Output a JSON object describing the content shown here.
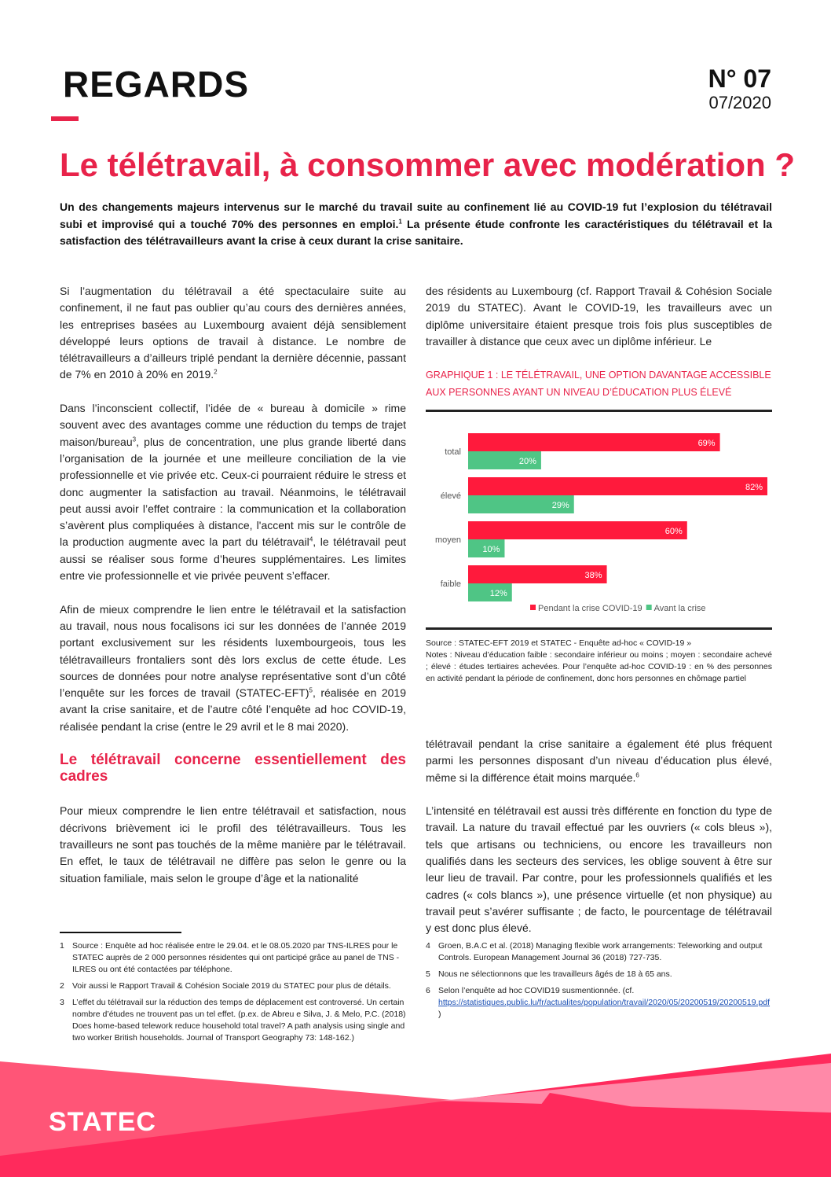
{
  "header": {
    "brand": "REGARDS",
    "issue_number": "N° 07",
    "issue_date": "07/2020"
  },
  "title": "Le télétravail, à consommer avec modération ?",
  "lead": [
    [
      "Un des changements majeurs intervenus sur le marché du travail suite au confinement lié au COVID-19 fut l’explosion du télétravail subi et improvisé qui a touché 70% des personnes en emploi.",
      {
        "sup": "1"
      },
      " La présente étude confronte les caractéristiques du télétravail  et la satisfaction des télétravailleurs avant la crise  à ceux durant la crise sanitaire."
    ]
  ],
  "left_column": {
    "paragraphs": [
      [
        "Si l’augmentation du télétravail a été spectaculaire suite au confinement, il ne faut pas oublier qu’au cours des dernières années, les entreprises basées au Luxembourg avaient déjà sensiblement développé leurs options de travail à distance. Le nombre de télétravailleurs a d’ailleurs triplé pendant la dernière décennie, passant de 7% en 2010 à 20% en 2019.",
        {
          "sup": "2"
        }
      ],
      [
        "Dans l’inconscient collectif, l’idée de « bureau à domicile » rime souvent avec des avantages comme une réduction du temps de trajet maison/bureau",
        {
          "sup": "3"
        },
        ", plus de concentration, une plus grande liberté dans l’organisation de la journée et une meilleure conciliation de la vie professionnelle et vie privée etc. Ceux-ci pourraient réduire le stress et donc augmenter la satisfaction au travail. Néanmoins, le télétravail peut aussi avoir l’effet contraire : la communication et la collaboration s’avèrent plus compliquées à distance, l'accent mis sur le contrôle de la production augmente avec la part du télétravail",
        {
          "sup": "4"
        },
        ", le télétravail peut aussi se réaliser sous forme d’heures supplémentaires. Les limites entre vie professionnelle et vie privée peuvent s’effacer."
      ],
      [
        "Afin de mieux comprendre le lien entre le télétravail et la satisfaction au travail, nous nous focalisons ici sur les données de l’année 2019 portant exclusivement sur les résidents luxembourgeois, tous les télétravailleurs frontaliers sont dès lors exclus de cette étude. Les sources de données pour notre analyse représentative sont d’un côté l’enquête sur les forces de travail (STATEC-EFT)",
        {
          "sup": "5"
        },
        ", réalisée en 2019 avant la crise sanitaire, et de l’autre côté l’enquête ad hoc COVID-19, réalisée pendant la crise (entre le 29 avril et le 8 mai 2020)."
      ]
    ],
    "section_heading": "Le télétravail concerne essentiellement des cadres",
    "section_paragraphs": [
      [
        "Pour mieux comprendre le lien entre télétravail et satisfaction, nous décrivons brièvement ici le profil des télétravailleurs. Tous les travailleurs ne sont pas touchés de la même manière par le télétravail. En effet, le taux de télétravail ne diffère pas selon le genre ou la situation familiale, mais selon le groupe d’âge et la nationalité"
      ]
    ]
  },
  "right_column": {
    "top_paragraphs": [
      [
        "des résidents au Luxembourg (cf. Rapport Travail & Cohésion Sociale 2019 du STATEC). Avant le COVID-19, les travailleurs avec un diplôme universitaire étaient presque trois fois plus susceptibles de travailler à distance que ceux avec un diplôme inférieur. Le"
      ]
    ],
    "bottom_paragraphs": [
      [
        "télétravail pendant la crise sanitaire a également été plus fréquent parmi les personnes disposant d’un niveau d’éducation plus élevé, même si la différence était moins marquée.",
        {
          "sup": "6"
        }
      ],
      [
        "L’intensité en télétravail est aussi très différente en fonction du type de travail. La nature du travail effectué par les ouvriers (« cols bleus »), tels que artisans ou techniciens, ou encore les travailleurs non qualifiés dans les secteurs des services, les oblige souvent à être sur leur lieu de travail. Par contre, pour les professionnels qualifiés et les cadres (« cols blancs »), une présence virtuelle (et non physique) au travail peut s’avérer suffisante ; de facto, le pourcentage de télétravail y est donc plus élevé."
      ]
    ]
  },
  "chart_data": {
    "type": "bar",
    "orientation": "horizontal",
    "title": "GRAPHIQUE 1 : LE TÉLÉTRAVAIL, UNE OPTION DAVANTAGE ACCESSIBLE AUX PERSONNES AYANT UN NIVEAU D’ÉDUCATION PLUS ÉLEVÉ",
    "categories": [
      "total",
      "élevé",
      "moyen",
      "faible"
    ],
    "series": [
      {
        "name": "Pendant la crise COVID-19",
        "values": [
          69,
          82,
          60,
          38
        ],
        "color": "#ff1a3c"
      },
      {
        "name": "Avant la crise",
        "values": [
          20,
          29,
          10,
          12
        ],
        "color": "#4fc585"
      }
    ],
    "unit": "%",
    "xlim": [
      0,
      82
    ],
    "grid": false,
    "legend": "bottom",
    "source": "Source : STATEC-EFT 2019 et STATEC - Enquête ad-hoc « COVID-19 »",
    "notes": "Notes : Niveau d’éducation faible : secondaire inférieur ou moins ; moyen : secondaire achevé ; élevé : études tertiaires achevées. Pour l’enquête ad-hoc COVID-19 : en % des personnes en activité pendant la période de confinement, donc hors personnes en chômage partiel"
  },
  "footnotes_left": [
    {
      "n": "1",
      "text": "Source : Enquête ad hoc réalisée entre le 29.04. et le 08.05.2020 par TNS-ILRES pour le STATEC auprès de 2 000 personnes résidentes qui ont participé grâce au panel de TNS -ILRES ou ont été contactées par téléphone."
    },
    {
      "n": "2",
      "text": "Voir aussi le Rapport Travail & Cohésion Sociale 2019 du STATEC pour plus de détails."
    },
    {
      "n": "3",
      "text": "L’effet du télétravail sur la réduction des temps de déplacement est controversé. Un certain nombre d’études ne trouvent pas un tel effet. (p.ex. de Abreu e Silva, J. & Melo, P.C. (2018) Does home-based telework reduce household total travel? A path analysis using single and two worker British households. Journal of Transport Geography 73: 148-162.)"
    }
  ],
  "footnotes_right": [
    {
      "n": "4",
      "text": "Groen, B.A.C et al. (2018) Managing flexible work arrangements: Teleworking and output Controls. European Management Journal 36 (2018) 727-735."
    },
    {
      "n": "5",
      "text": "Nous ne sélectionnons que les travailleurs âgés de 18 à 65 ans."
    },
    {
      "n": "6",
      "text": "Selon l’enquête ad hoc COVID19 susmentionnée. (cf. ",
      "link": "https://statistiques.public.lu/fr/actualites/population/travail/2020/05/20200519/20200519.pdf",
      "after": " )"
    }
  ],
  "footer": {
    "logo": "STATEC"
  },
  "colors": {
    "accent": "#e8234a",
    "bar_covid": "#ff1a3c",
    "bar_before": "#4fc585",
    "footer_pink": "#ff2a5c"
  }
}
